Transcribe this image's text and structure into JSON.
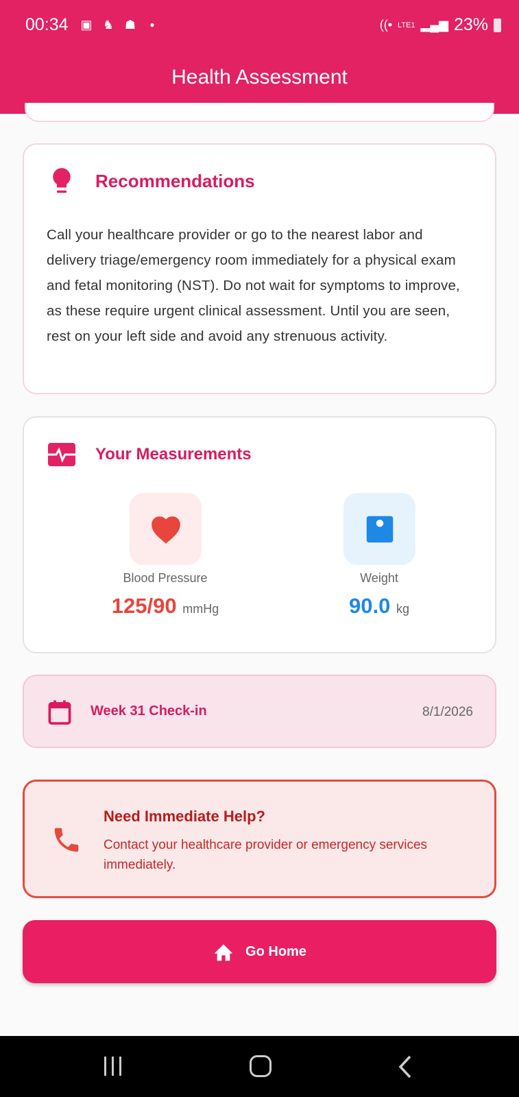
{
  "status_bar": {
    "time": "00:34",
    "battery": "23%",
    "network": "LTE1"
  },
  "header": {
    "title": "Health Assessment"
  },
  "recommendations": {
    "title": "Recommendations",
    "text": "Call your healthcare provider or go to the nearest labor and delivery triage/emergency room immediately for a physical exam and fetal monitoring (NST). Do not wait for symptoms to improve, as these require urgent clinical assessment. Until you are seen, rest on your left side and avoid any strenuous activity."
  },
  "measurements": {
    "title": "Your Measurements",
    "items": [
      {
        "label": "Blood Pressure",
        "value": "125/90",
        "unit": "mmHg",
        "color": "#e8453c"
      },
      {
        "label": "Weight",
        "value": "90.0",
        "unit": "kg",
        "color": "#1e88e5"
      }
    ]
  },
  "checkin": {
    "label": "Week 31 Check-in",
    "date": "8/1/2026"
  },
  "help": {
    "title": "Need Immediate Help?",
    "text": "Contact your healthcare provider or emergency services immediately."
  },
  "home_button": {
    "label": "Go Home"
  },
  "colors": {
    "primary": "#e22262",
    "danger": "#e34b3f"
  }
}
